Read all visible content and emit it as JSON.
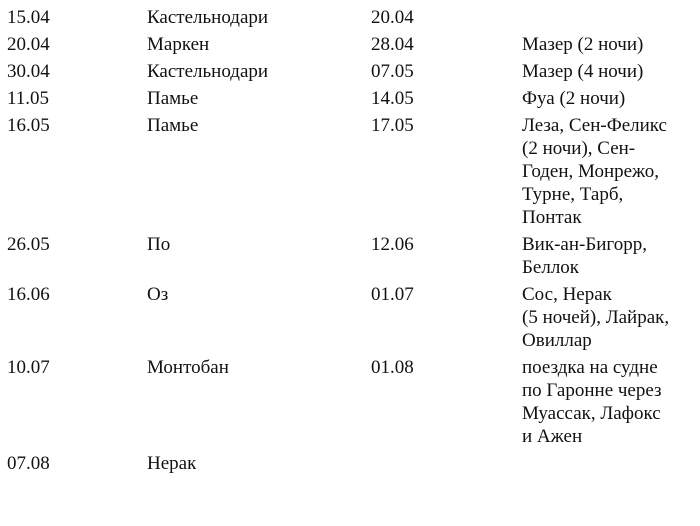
{
  "rows": [
    {
      "arrive": "15.04",
      "place": "Кастельнодари",
      "depart": "20.04",
      "notes": []
    },
    {
      "arrive": "20.04",
      "place": "Маркен",
      "depart": "28.04",
      "notes": [
        "Мазер (2 ночи)"
      ]
    },
    {
      "arrive": "30.04",
      "place": "Кастельнодари",
      "depart": "07.05",
      "notes": [
        "Мазер (4 ночи)"
      ]
    },
    {
      "arrive": "11.05",
      "place": "Памье",
      "depart": "14.05",
      "notes": [
        "Фуа (2 ночи)"
      ]
    },
    {
      "arrive": "16.05",
      "place": "Памье",
      "depart": "17.05",
      "notes": [
        "Леза, Сен-Феликс",
        "(2 ночи), Сен-",
        "Годен, Монрежо,",
        "Турне, Тарб,",
        "Понтак"
      ]
    },
    {
      "arrive": "26.05",
      "place": "По",
      "depart": "12.06",
      "notes": [
        "Вик-ан-Бигорр,",
        "Беллок"
      ]
    },
    {
      "arrive": "16.06",
      "place": "Оз",
      "depart": "01.07",
      "notes": [
        "Сос, Нерак",
        "(5 ночей), Лайрак,",
        "Овиллар"
      ]
    },
    {
      "arrive": "10.07",
      "place": "Монтобан",
      "depart": "01.08",
      "notes": [
        "поездка на судне",
        "по Гаронне через",
        "Муассак, Лафокс",
        "и Ажен"
      ]
    },
    {
      "arrive": "07.08",
      "place": "Нерак",
      "depart": "",
      "notes": []
    }
  ]
}
